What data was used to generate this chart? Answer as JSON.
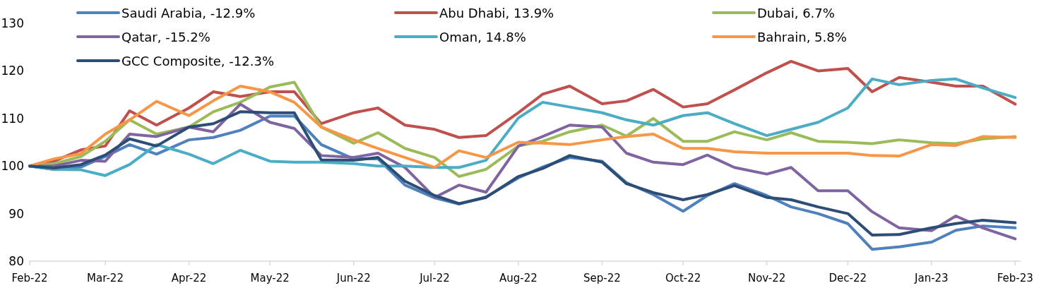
{
  "chart_data": {
    "type": "line",
    "x": [
      "2022-02-01",
      "2022-02-10",
      "2022-02-20",
      "2022-03-01",
      "2022-03-10",
      "2022-03-20",
      "2022-04-01",
      "2022-04-10",
      "2022-04-20",
      "2022-05-01",
      "2022-05-10",
      "2022-05-20",
      "2022-06-01",
      "2022-06-10",
      "2022-06-20",
      "2022-07-01",
      "2022-07-10",
      "2022-07-20",
      "2022-08-01",
      "2022-08-10",
      "2022-08-20",
      "2022-09-01",
      "2022-09-10",
      "2022-09-20",
      "2022-10-01",
      "2022-10-10",
      "2022-10-20",
      "2022-11-01",
      "2022-11-10",
      "2022-11-20",
      "2022-12-01",
      "2022-12-10",
      "2022-12-20",
      "2023-01-01",
      "2023-01-10",
      "2023-01-20",
      "2023-02-01"
    ],
    "series": [
      {
        "name": "Saudi Arabia, -12.9%",
        "color": "#4f81bd",
        "values": [
          100,
          99.3,
          99.8,
          102,
          104.5,
          102.5,
          105.5,
          106,
          107.5,
          110.5,
          110.5,
          104.5,
          101.5,
          101.5,
          96,
          93.3,
          92,
          93.5,
          97.5,
          99.8,
          101.8,
          101,
          96.5,
          94,
          90.5,
          93.8,
          96.3,
          93.8,
          91.4,
          90,
          87.9,
          82.5,
          83,
          84,
          86.5,
          87.4,
          87
        ]
      },
      {
        "name": "Abu Dhabi, 13.9%",
        "color": "#c0504d",
        "values": [
          100,
          101,
          103.4,
          104.2,
          111.6,
          108.6,
          112.2,
          115.6,
          114.6,
          115.6,
          115.6,
          108.9,
          111.2,
          112.2,
          108.6,
          107.7,
          106,
          106.4,
          111.2,
          115.1,
          116.8,
          113.1,
          113.7,
          116.1,
          112.4,
          113.1,
          116,
          119.6,
          122,
          120,
          120.5,
          115.6,
          118.6,
          117.6,
          116.8,
          116.8,
          113
        ]
      },
      {
        "name": "Dubai, 6.7%",
        "color": "#9bbb59",
        "values": [
          100,
          100.5,
          102,
          105.2,
          109.7,
          106.7,
          108.2,
          111.4,
          113.4,
          116.6,
          117.6,
          108.2,
          104.8,
          107,
          103.7,
          101.8,
          97.8,
          99.3,
          104.2,
          105.2,
          107.2,
          108.6,
          106.3,
          110,
          105.2,
          105.2,
          107.2,
          105.5,
          107,
          105.2,
          105,
          104.7,
          105.5,
          104.9,
          104.7,
          105.7,
          106.2
        ]
      },
      {
        "name": "Qatar, -15.2%",
        "color": "#8064a2",
        "values": [
          100,
          100,
          101.2,
          101,
          106.7,
          106.2,
          108.2,
          107.2,
          113,
          109.2,
          107.9,
          102.2,
          101.8,
          102.7,
          99.7,
          93.4,
          96,
          94.5,
          104.2,
          106.2,
          108.6,
          108.2,
          102.7,
          100.8,
          100.3,
          102.3,
          99.7,
          98.3,
          99.7,
          94.8,
          94.8,
          90.4,
          87,
          86.4,
          89.5,
          87,
          84.7
        ]
      },
      {
        "name": "Oman, 14.8%",
        "color": "#4bacc6",
        "values": [
          100,
          99.3,
          99.2,
          98,
          100.3,
          104.5,
          102.5,
          100.5,
          103.3,
          101,
          100.8,
          100.8,
          100.5,
          100,
          100,
          99.7,
          99.7,
          101.2,
          110.1,
          113.4,
          112.4,
          111.2,
          109.7,
          108.6,
          110.6,
          111.2,
          108.9,
          106.4,
          107.7,
          109.2,
          112.2,
          118.3,
          117.1,
          118,
          118.3,
          116.4,
          114.4
        ]
      },
      {
        "name": "Bahrain, 5.8%",
        "color": "#f79646",
        "values": [
          100,
          101.5,
          102.6,
          106.7,
          109.7,
          113.6,
          110.6,
          113.7,
          116.8,
          115.6,
          113.4,
          108.2,
          105.5,
          103.7,
          101.8,
          99.7,
          103.2,
          101.8,
          105,
          104.8,
          104.5,
          105.5,
          106.2,
          106.7,
          103.7,
          103.7,
          103,
          102.7,
          102.7,
          102.7,
          102.7,
          102.2,
          102.1,
          104.5,
          104.3,
          106.2,
          106
        ]
      },
      {
        "name": "GCC Composite, -12.3%",
        "color": "#2c4d75",
        "values": [
          100,
          99.6,
          100.3,
          102.3,
          105.7,
          104.2,
          108.2,
          108.9,
          111.4,
          111.2,
          111.2,
          101.3,
          101.2,
          101.8,
          96.8,
          93.8,
          92.1,
          93.4,
          97.8,
          99.5,
          102.2,
          100.8,
          96.3,
          94.4,
          92.9,
          94,
          95.9,
          93.4,
          92.9,
          91.4,
          90,
          85.5,
          85.6,
          87,
          87.9,
          88.6,
          88.1
        ]
      }
    ],
    "xlim": [
      "2022-02-01",
      "2023-02-03"
    ],
    "xticks": [
      {
        "value": "2022-02-01",
        "label": "Feb-22"
      },
      {
        "value": "2022-03-01",
        "label": "Mar-22"
      },
      {
        "value": "2022-04-01",
        "label": "Apr-22"
      },
      {
        "value": "2022-05-01",
        "label": "May-22"
      },
      {
        "value": "2022-06-01",
        "label": "Jun-22"
      },
      {
        "value": "2022-07-01",
        "label": "Jul-22"
      },
      {
        "value": "2022-08-01",
        "label": "Aug-22"
      },
      {
        "value": "2022-09-01",
        "label": "Sep-22"
      },
      {
        "value": "2022-10-01",
        "label": "Oct-22"
      },
      {
        "value": "2022-11-01",
        "label": "Nov-22"
      },
      {
        "value": "2022-12-01",
        "label": "Dec-22"
      },
      {
        "value": "2023-01-01",
        "label": "Jan-23"
      },
      {
        "value": "2023-02-01",
        "label": "Feb-23"
      }
    ],
    "ylim": [
      80,
      130
    ],
    "yticks": [
      80,
      90,
      100,
      110,
      120,
      130
    ],
    "legend": "top",
    "grid": false,
    "marker": "none",
    "line_style": "solid"
  }
}
